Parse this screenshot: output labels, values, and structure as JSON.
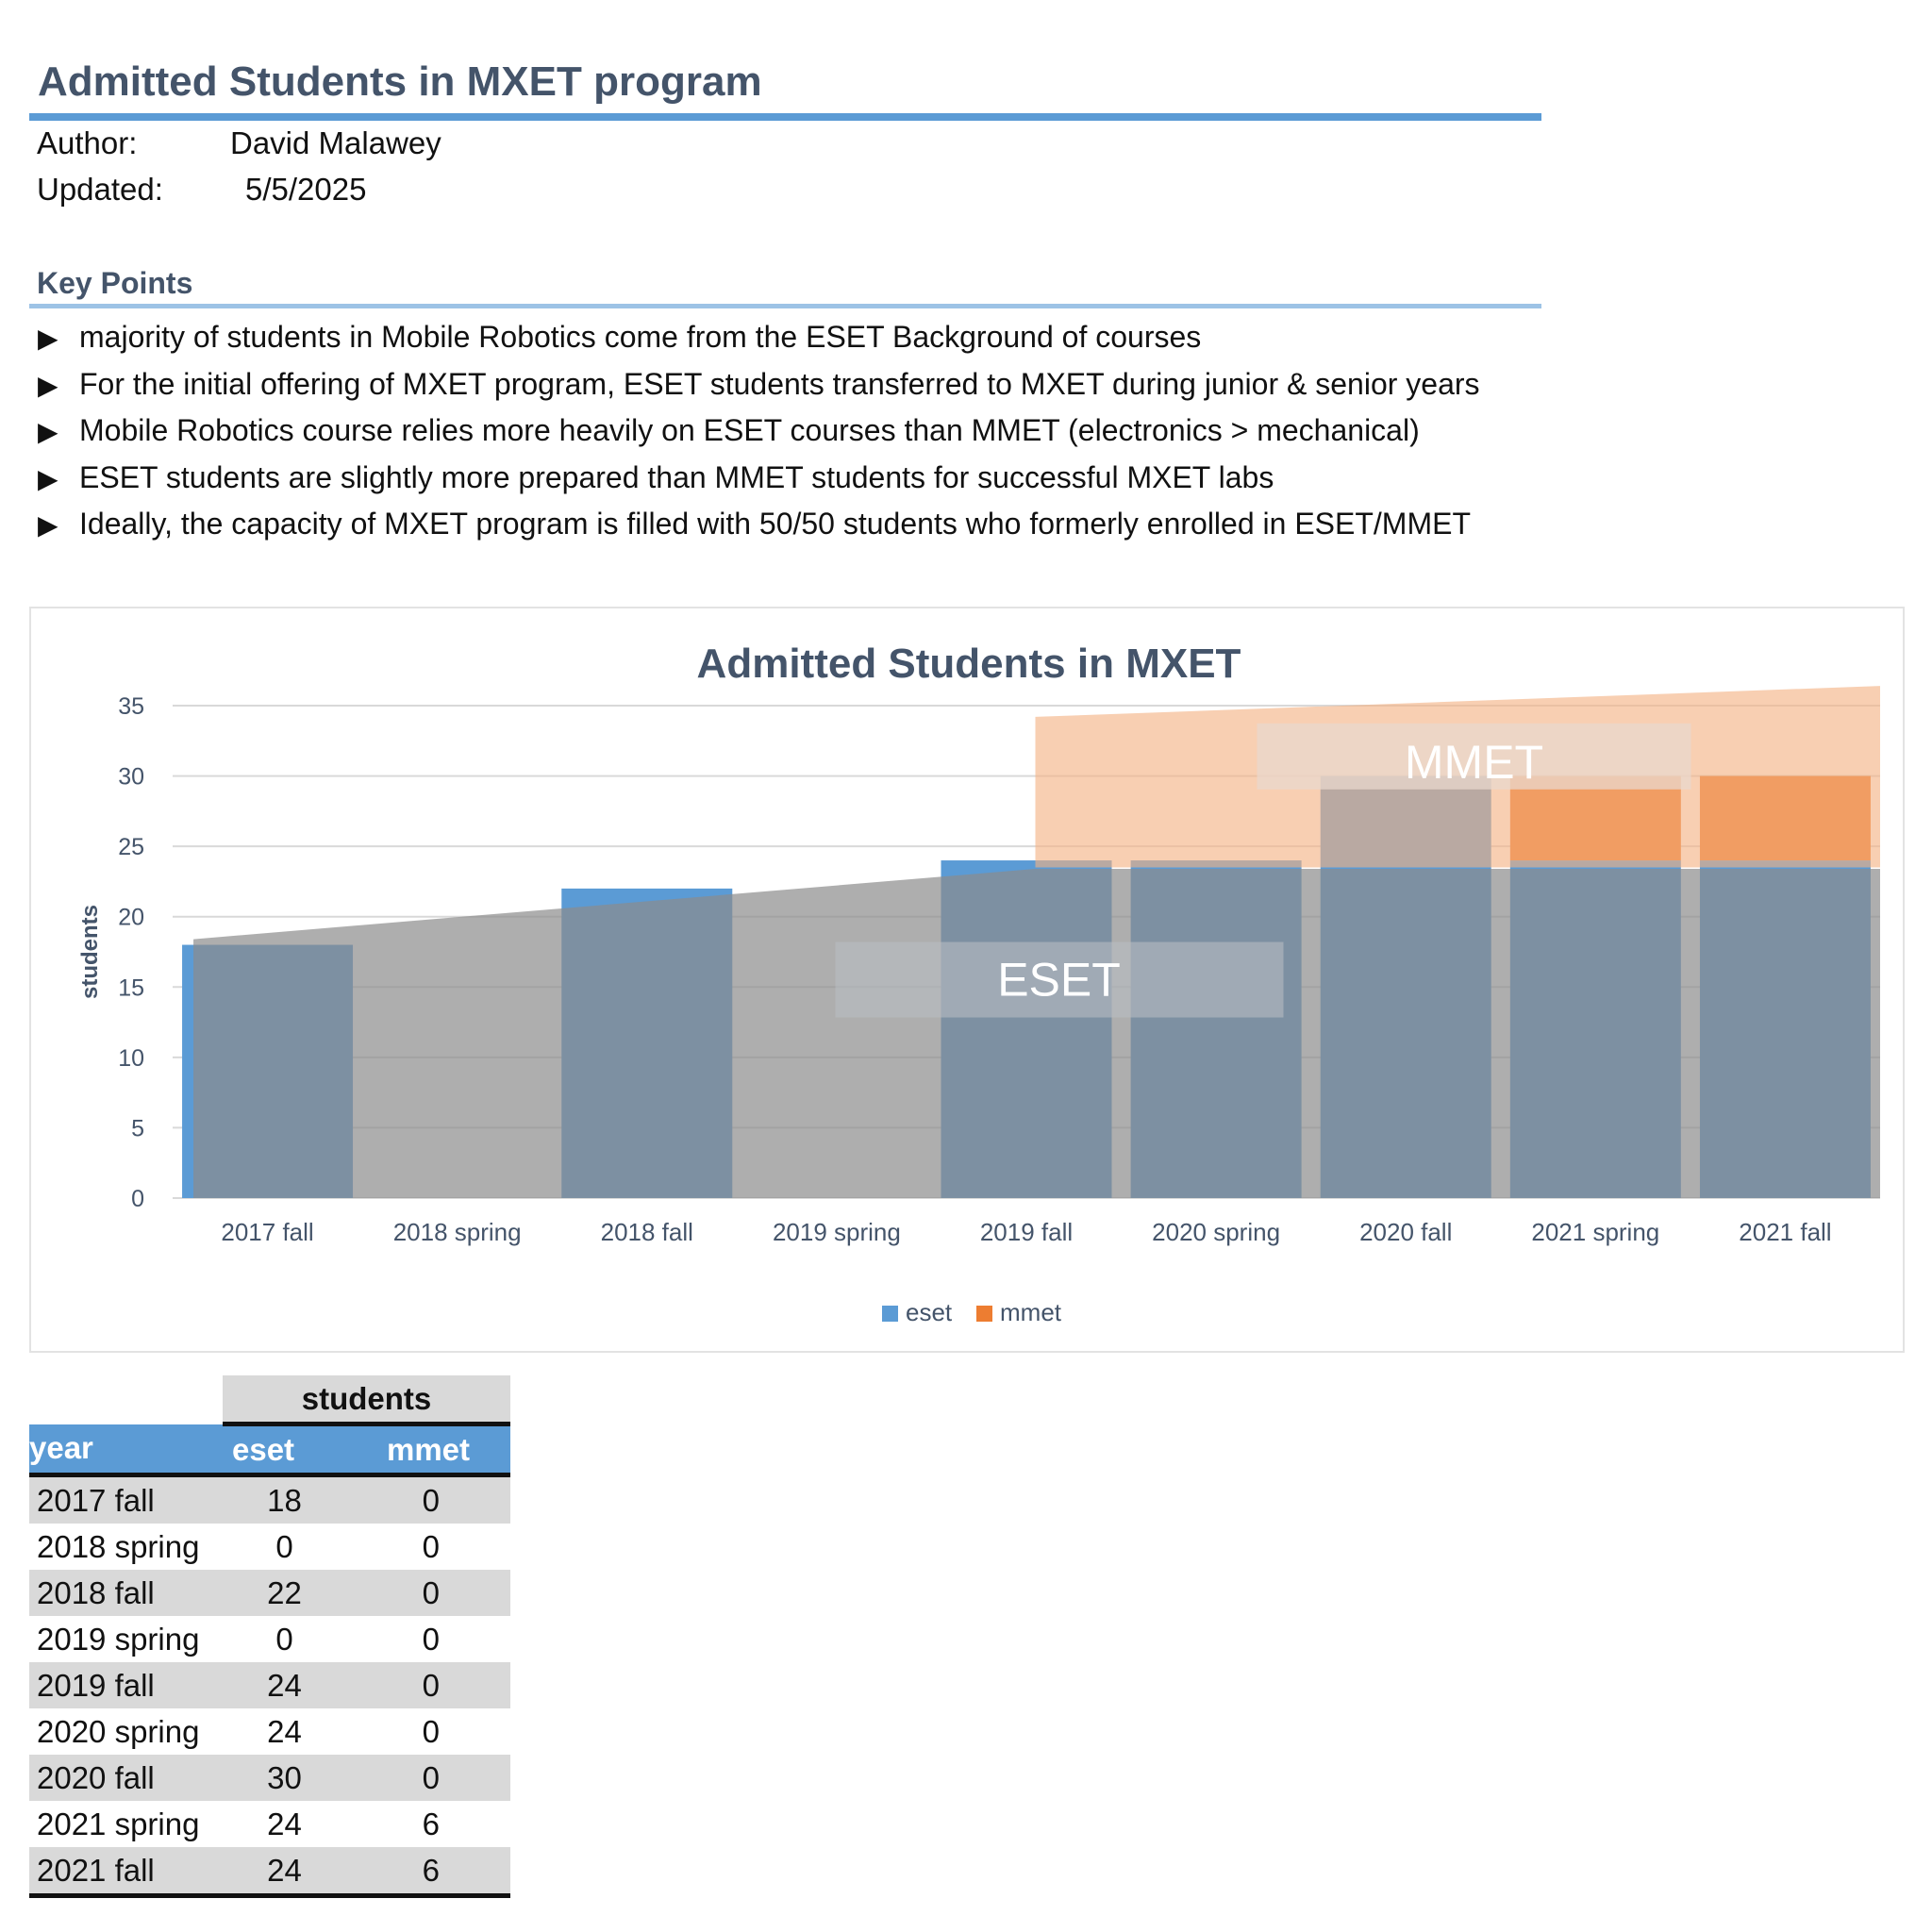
{
  "header": {
    "title": "Admitted Students in MXET program",
    "author_label": "Author:",
    "author_value": "David Malawey",
    "updated_label": "Updated:",
    "updated_value": "5/5/2025"
  },
  "key_points": {
    "title": "Key Points",
    "bullet": "▶",
    "items": [
      "majority of students in Mobile Robotics come from the ESET Background of courses",
      "For the initial offering of MXET program, ESET students transferred to MXET during junior & senior years",
      "Mobile Robotics course relies more heavily on ESET courses than MMET (electronics > mechanical)",
      "ESET students are slightly more prepared than MMET students for successful MXET labs",
      "Ideally, the capacity of MXET program is filled with 50/50 students who formerly enrolled in ESET/MMET"
    ]
  },
  "chart_data": {
    "type": "bar",
    "stacked": true,
    "title": "Admitted Students in MXET",
    "ylabel": "students",
    "xlabel": "",
    "ylim": [
      0,
      35
    ],
    "yticks": [
      0,
      5,
      10,
      15,
      20,
      25,
      30,
      35
    ],
    "categories": [
      "2017 fall",
      "2018 spring",
      "2018 fall",
      "2019 spring",
      "2019 fall",
      "2020 spring",
      "2020 fall",
      "2021 spring",
      "2021 fall"
    ],
    "series": [
      {
        "name": "eset",
        "color": "#5b9bd5",
        "values": [
          18,
          0,
          22,
          0,
          24,
          24,
          30,
          24,
          24
        ]
      },
      {
        "name": "mmet",
        "color": "#ed7d31",
        "values": [
          0,
          0,
          0,
          0,
          0,
          0,
          0,
          6,
          6
        ]
      }
    ],
    "overlay_labels": [
      "ESET",
      "MMET"
    ],
    "legend_position": "bottom",
    "grid": true
  },
  "table": {
    "group_header": "students",
    "columns": [
      "year",
      "eset",
      "mmet"
    ],
    "rows": [
      [
        "2017 fall",
        "18",
        "0"
      ],
      [
        "2018 spring",
        "0",
        "0"
      ],
      [
        "2018 fall",
        "22",
        "0"
      ],
      [
        "2019 spring",
        "0",
        "0"
      ],
      [
        "2019 fall",
        "24",
        "0"
      ],
      [
        "2020 spring",
        "24",
        "0"
      ],
      [
        "2020 fall",
        "30",
        "0"
      ],
      [
        "2021 spring",
        "24",
        "6"
      ],
      [
        "2021 fall",
        "24",
        "6"
      ]
    ]
  }
}
